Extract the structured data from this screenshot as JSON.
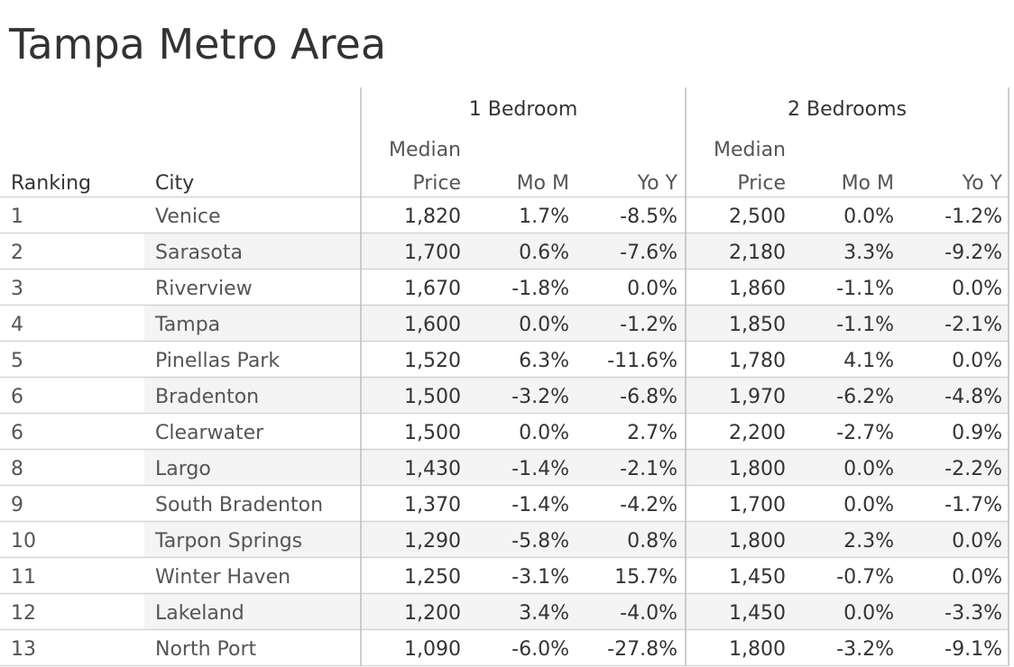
{
  "title": "Tampa Metro Area",
  "chart_data": {
    "type": "table",
    "title": "Tampa Metro Area",
    "column_groups": [
      {
        "label": "1 Bedroom",
        "columns": [
          "Median Price",
          "Mo M",
          "Yo Y"
        ]
      },
      {
        "label": "2 Bedrooms",
        "columns": [
          "Median Price",
          "Mo M",
          "Yo Y"
        ]
      }
    ],
    "row_headers": [
      "Ranking",
      "City"
    ],
    "header_lines": {
      "ranking": "Ranking",
      "city": "City",
      "median_top": "Median",
      "median_bottom": "Price",
      "mom": "Mo M",
      "yoy": "Yo Y"
    },
    "rows": [
      {
        "rank": "1",
        "city": "Venice",
        "b1_price": "1,820",
        "b1_mom": "1.7%",
        "b1_yoy": "-8.5%",
        "b2_price": "2,500",
        "b2_mom": "0.0%",
        "b2_yoy": "-1.2%"
      },
      {
        "rank": "2",
        "city": "Sarasota",
        "b1_price": "1,700",
        "b1_mom": "0.6%",
        "b1_yoy": "-7.6%",
        "b2_price": "2,180",
        "b2_mom": "3.3%",
        "b2_yoy": "-9.2%"
      },
      {
        "rank": "3",
        "city": "Riverview",
        "b1_price": "1,670",
        "b1_mom": "-1.8%",
        "b1_yoy": "0.0%",
        "b2_price": "1,860",
        "b2_mom": "-1.1%",
        "b2_yoy": "0.0%"
      },
      {
        "rank": "4",
        "city": "Tampa",
        "b1_price": "1,600",
        "b1_mom": "0.0%",
        "b1_yoy": "-1.2%",
        "b2_price": "1,850",
        "b2_mom": "-1.1%",
        "b2_yoy": "-2.1%"
      },
      {
        "rank": "5",
        "city": "Pinellas Park",
        "b1_price": "1,520",
        "b1_mom": "6.3%",
        "b1_yoy": "-11.6%",
        "b2_price": "1,780",
        "b2_mom": "4.1%",
        "b2_yoy": "0.0%"
      },
      {
        "rank": "6",
        "city": "Bradenton",
        "b1_price": "1,500",
        "b1_mom": "-3.2%",
        "b1_yoy": "-6.8%",
        "b2_price": "1,970",
        "b2_mom": "-6.2%",
        "b2_yoy": "-4.8%"
      },
      {
        "rank": "6",
        "city": "Clearwater",
        "b1_price": "1,500",
        "b1_mom": "0.0%",
        "b1_yoy": "2.7%",
        "b2_price": "2,200",
        "b2_mom": "-2.7%",
        "b2_yoy": "0.9%"
      },
      {
        "rank": "8",
        "city": "Largo",
        "b1_price": "1,430",
        "b1_mom": "-1.4%",
        "b1_yoy": "-2.1%",
        "b2_price": "1,800",
        "b2_mom": "0.0%",
        "b2_yoy": "-2.2%"
      },
      {
        "rank": "9",
        "city": "South Bradenton",
        "b1_price": "1,370",
        "b1_mom": "-1.4%",
        "b1_yoy": "-4.2%",
        "b2_price": "1,700",
        "b2_mom": "0.0%",
        "b2_yoy": "-1.7%"
      },
      {
        "rank": "10",
        "city": "Tarpon Springs",
        "b1_price": "1,290",
        "b1_mom": "-5.8%",
        "b1_yoy": "0.8%",
        "b2_price": "1,800",
        "b2_mom": "2.3%",
        "b2_yoy": "0.0%"
      },
      {
        "rank": "11",
        "city": "Winter Haven",
        "b1_price": "1,250",
        "b1_mom": "-3.1%",
        "b1_yoy": "15.7%",
        "b2_price": "1,450",
        "b2_mom": "-0.7%",
        "b2_yoy": "0.0%"
      },
      {
        "rank": "12",
        "city": "Lakeland",
        "b1_price": "1,200",
        "b1_mom": "3.4%",
        "b1_yoy": "-4.0%",
        "b2_price": "1,450",
        "b2_mom": "0.0%",
        "b2_yoy": "-3.3%"
      },
      {
        "rank": "13",
        "city": "North Port",
        "b1_price": "1,090",
        "b1_mom": "-6.0%",
        "b1_yoy": "-27.8%",
        "b2_price": "1,800",
        "b2_mom": "-3.2%",
        "b2_yoy": "-9.1%"
      }
    ]
  },
  "colors": {
    "text": "#333333",
    "light_text": "#555555",
    "band": "#f4f4f4",
    "rule": "#d4d4d4",
    "divider": "#bdbdbd"
  }
}
